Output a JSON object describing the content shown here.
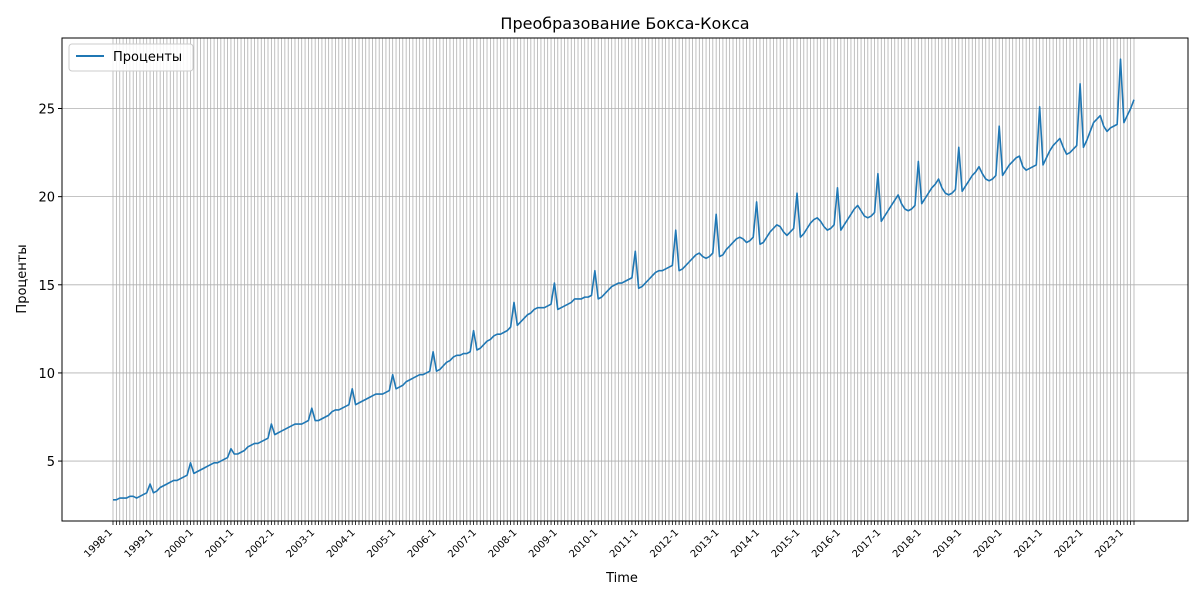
{
  "chart_data": {
    "type": "line",
    "title": "Преобразование Бокса-Кокса",
    "xlabel": "Time",
    "ylabel": "Проценты",
    "legend": {
      "placement": "top-left",
      "entries": [
        "Проценты"
      ]
    },
    "grid": true,
    "x_range": [
      "1998-1",
      "2023-4"
    ],
    "ylim": [
      1.6,
      29.0
    ],
    "yticks": [
      5,
      10,
      15,
      20,
      25
    ],
    "x_tick_labels": [
      "1998-1",
      "1999-1",
      "2000-1",
      "2001-1",
      "2002-1",
      "2003-1",
      "2004-1",
      "2005-1",
      "2006-1",
      "2007-1",
      "2008-1",
      "2009-1",
      "2010-1",
      "2011-1",
      "2012-1",
      "2013-1",
      "2014-1",
      "2015-1",
      "2016-1",
      "2017-1",
      "2018-1",
      "2019-1",
      "2020-1",
      "2021-1",
      "2022-1",
      "2023-1"
    ],
    "series": [
      {
        "name": "Проценты",
        "color": "#1f77b4",
        "start": "1998-1",
        "frequency": "monthly",
        "values_by_year": [
          [
            2.8,
            2.8,
            2.9,
            2.9,
            2.9,
            3.0,
            3.0,
            2.9,
            3.0,
            3.1,
            3.2,
            3.7
          ],
          [
            3.2,
            3.3,
            3.5,
            3.6,
            3.7,
            3.8,
            3.9,
            3.9,
            4.0,
            4.1,
            4.2,
            4.9
          ],
          [
            4.3,
            4.4,
            4.5,
            4.6,
            4.7,
            4.8,
            4.9,
            4.9,
            5.0,
            5.1,
            5.2,
            5.7
          ],
          [
            5.4,
            5.4,
            5.5,
            5.6,
            5.8,
            5.9,
            6.0,
            6.0,
            6.1,
            6.2,
            6.3,
            7.1
          ],
          [
            6.5,
            6.6,
            6.7,
            6.8,
            6.9,
            7.0,
            7.1,
            7.1,
            7.1,
            7.2,
            7.3,
            8.0
          ],
          [
            7.3,
            7.3,
            7.4,
            7.5,
            7.6,
            7.8,
            7.9,
            7.9,
            8.0,
            8.1,
            8.2,
            9.1
          ],
          [
            8.2,
            8.3,
            8.4,
            8.5,
            8.6,
            8.7,
            8.8,
            8.8,
            8.8,
            8.9,
            9.0,
            9.9
          ],
          [
            9.1,
            9.2,
            9.3,
            9.5,
            9.6,
            9.7,
            9.8,
            9.9,
            9.9,
            10.0,
            10.1,
            11.2
          ],
          [
            10.1,
            10.2,
            10.4,
            10.6,
            10.7,
            10.9,
            11.0,
            11.0,
            11.1,
            11.1,
            11.2,
            12.4
          ],
          [
            11.3,
            11.4,
            11.6,
            11.8,
            11.9,
            12.1,
            12.2,
            12.2,
            12.3,
            12.4,
            12.6,
            14.0
          ],
          [
            12.7,
            12.9,
            13.1,
            13.3,
            13.4,
            13.6,
            13.7,
            13.7,
            13.7,
            13.8,
            13.9,
            15.1
          ],
          [
            13.6,
            13.7,
            13.8,
            13.9,
            14.0,
            14.2,
            14.2,
            14.2,
            14.3,
            14.3,
            14.4,
            15.8
          ],
          [
            14.2,
            14.3,
            14.5,
            14.7,
            14.9,
            15.0,
            15.1,
            15.1,
            15.2,
            15.3,
            15.4,
            16.9
          ],
          [
            14.8,
            14.9,
            15.1,
            15.3,
            15.5,
            15.7,
            15.8,
            15.8,
            15.9,
            16.0,
            16.1,
            18.1
          ],
          [
            15.8,
            15.9,
            16.1,
            16.3,
            16.5,
            16.7,
            16.8,
            16.6,
            16.5,
            16.6,
            16.8,
            19.0
          ],
          [
            16.6,
            16.7,
            17.0,
            17.2,
            17.4,
            17.6,
            17.7,
            17.6,
            17.4,
            17.5,
            17.7,
            19.7
          ],
          [
            17.3,
            17.4,
            17.7,
            18.0,
            18.2,
            18.4,
            18.3,
            18.0,
            17.8,
            18.0,
            18.2,
            20.2
          ],
          [
            17.7,
            17.9,
            18.2,
            18.5,
            18.7,
            18.8,
            18.6,
            18.3,
            18.1,
            18.2,
            18.4,
            20.5
          ],
          [
            18.1,
            18.4,
            18.7,
            19.0,
            19.3,
            19.5,
            19.2,
            18.9,
            18.8,
            18.9,
            19.1,
            21.3
          ],
          [
            18.6,
            18.9,
            19.2,
            19.5,
            19.8,
            20.1,
            19.6,
            19.3,
            19.2,
            19.3,
            19.5,
            22.0
          ],
          [
            19.6,
            19.9,
            20.2,
            20.5,
            20.7,
            21.0,
            20.5,
            20.2,
            20.1,
            20.2,
            20.4,
            22.8
          ],
          [
            20.3,
            20.6,
            20.9,
            21.2,
            21.4,
            21.7,
            21.3,
            21.0,
            20.9,
            21.0,
            21.2,
            24.0
          ],
          [
            21.2,
            21.5,
            21.8,
            22.0,
            22.2,
            22.3,
            21.7,
            21.5,
            21.6,
            21.7,
            21.8,
            25.1
          ],
          [
            21.8,
            22.2,
            22.6,
            22.9,
            23.1,
            23.3,
            22.8,
            22.4,
            22.5,
            22.7,
            22.9,
            26.4
          ],
          [
            22.8,
            23.2,
            23.7,
            24.2,
            24.4,
            24.6,
            24.0,
            23.7,
            23.9,
            24.0,
            24.1,
            27.8
          ],
          [
            24.2,
            24.6,
            25.0,
            25.5
          ]
        ]
      }
    ]
  }
}
